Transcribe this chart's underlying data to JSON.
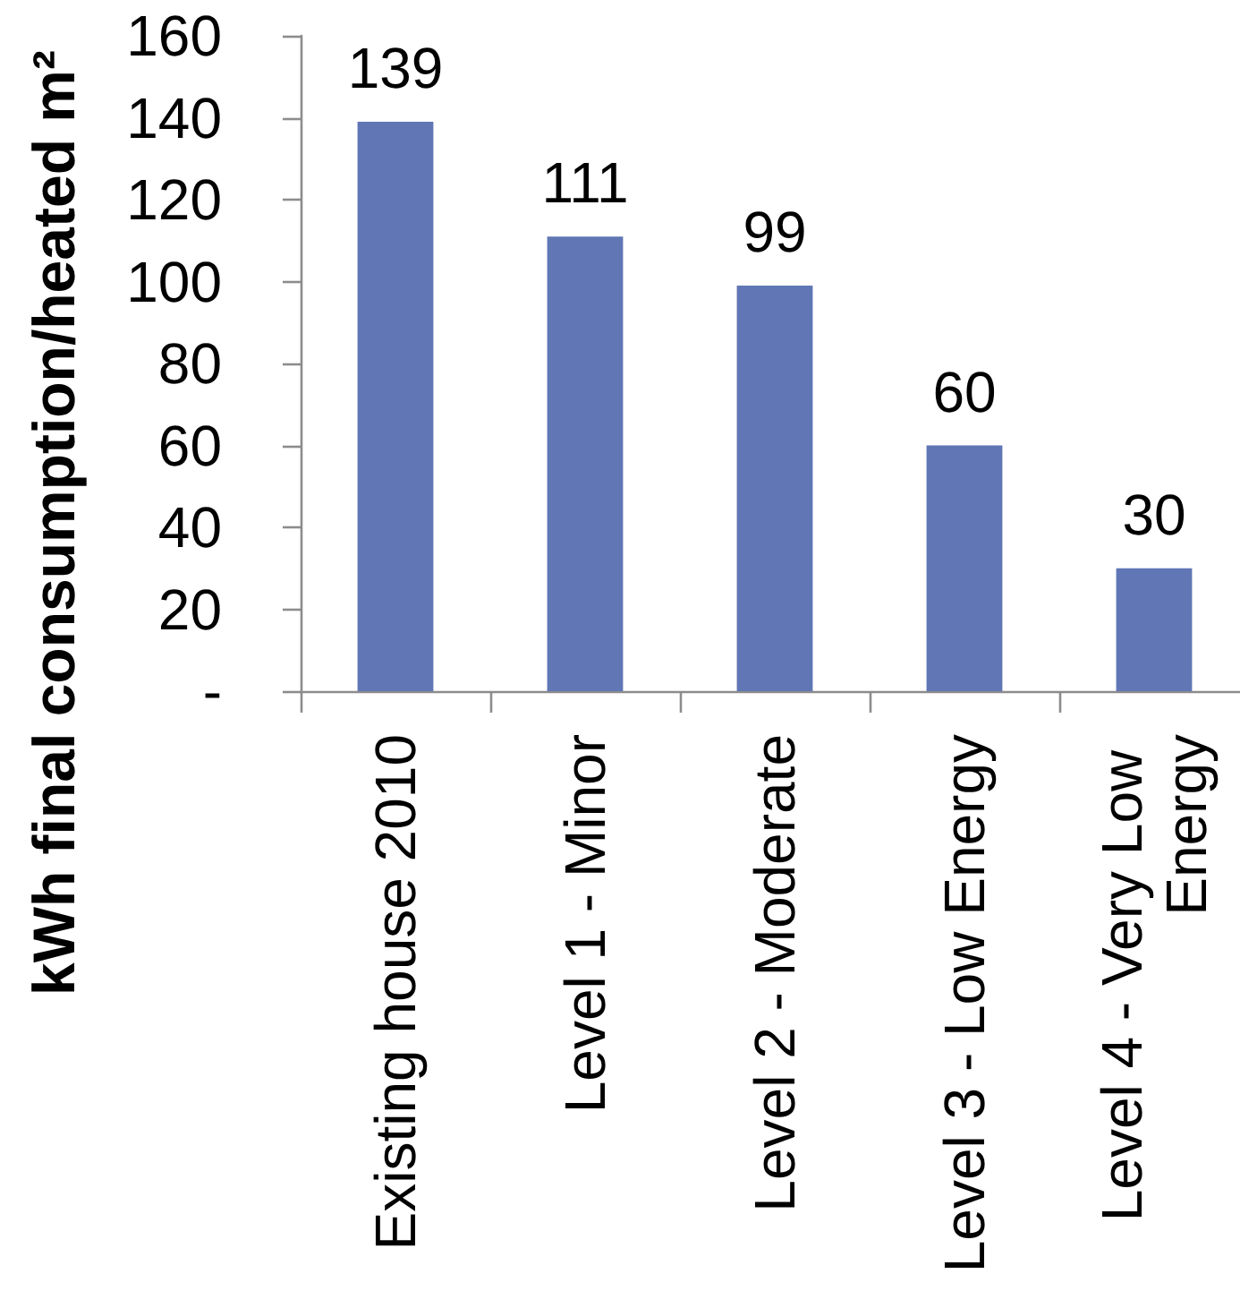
{
  "chart_data": {
    "type": "bar",
    "ylabel": "kWh final consumption/heated m²",
    "categories": [
      "Existing house 2010",
      "Level 1 - Minor",
      "Level 2 - Moderate",
      "Level 3 - Low Energy",
      "Level 4 - Very Low Energy"
    ],
    "values": [
      139,
      111,
      99,
      60,
      30
    ],
    "color": "#6076b5",
    "ylim": [
      0,
      160
    ],
    "yticks": [
      {
        "value": 0,
        "label": "-"
      },
      20,
      40,
      60,
      80,
      100,
      120,
      140,
      160
    ],
    "data_labels": true
  }
}
